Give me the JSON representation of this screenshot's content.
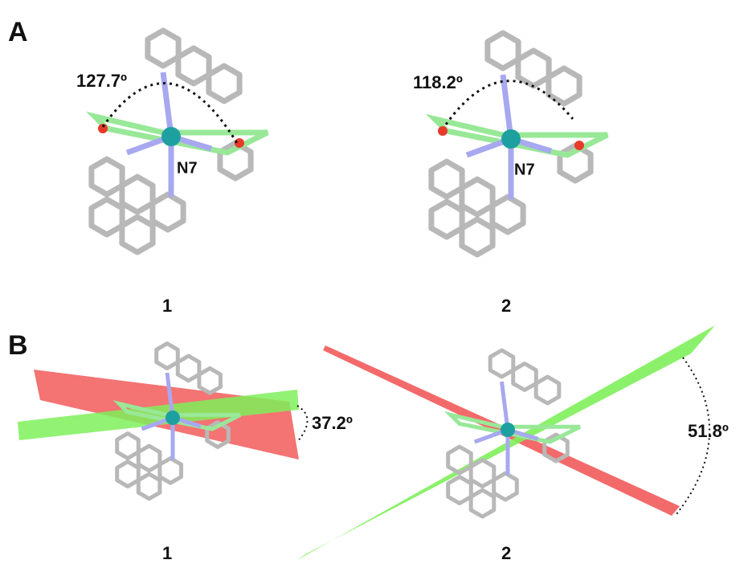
{
  "panels": [
    {
      "label": "A",
      "structures": [
        {
          "angle": "127.7º",
          "atom_label": "N7",
          "compound": "1"
        },
        {
          "angle": "118.2º",
          "atom_label": "N7",
          "compound": "2"
        }
      ]
    },
    {
      "label": "B",
      "structures": [
        {
          "angle": "37.2º",
          "compound": "1"
        },
        {
          "angle": "51.8º",
          "compound": "2"
        }
      ]
    }
  ]
}
